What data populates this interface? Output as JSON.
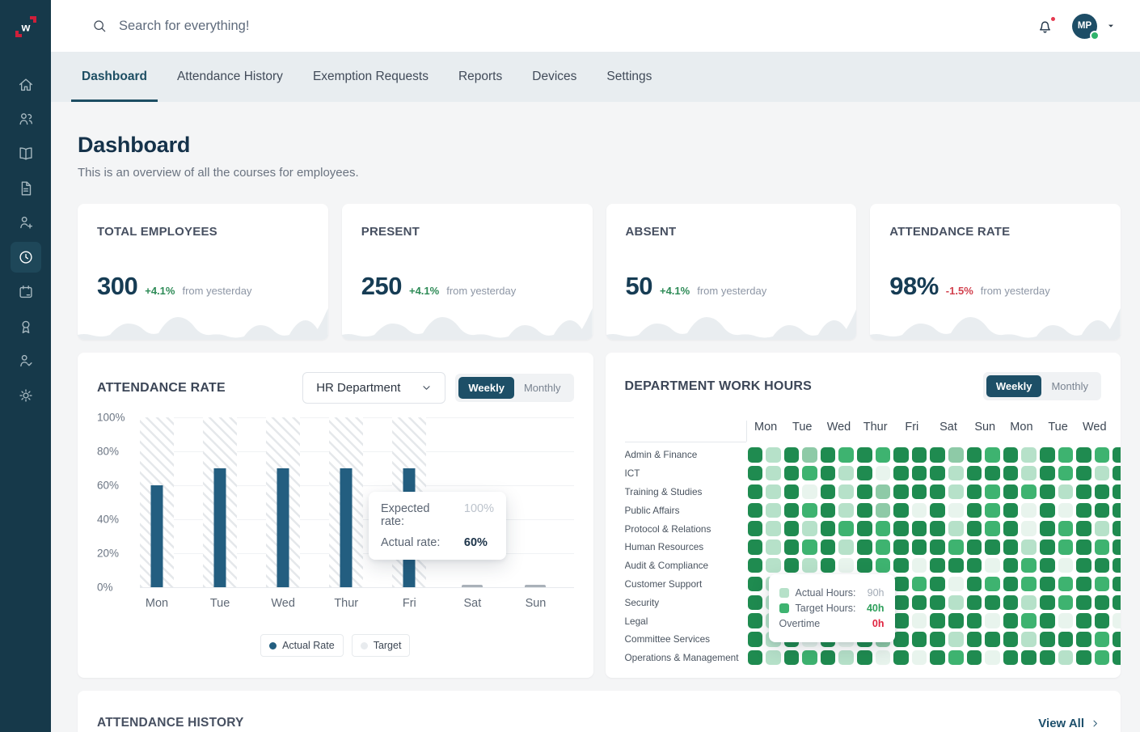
{
  "header": {
    "search_placeholder": "Search for everything!",
    "avatar_initials": "MP"
  },
  "sidebar": {
    "items": [
      {
        "icon": "home-icon"
      },
      {
        "icon": "users-icon"
      },
      {
        "icon": "book-icon"
      },
      {
        "icon": "file-icon"
      },
      {
        "icon": "user-plus-icon"
      },
      {
        "icon": "clock-icon",
        "active": true
      },
      {
        "icon": "calendar-icon"
      },
      {
        "icon": "award-icon"
      },
      {
        "icon": "user-check-icon"
      },
      {
        "icon": "gear-icon"
      }
    ]
  },
  "tabs": {
    "items": [
      {
        "label": "Dashboard",
        "active": true
      },
      {
        "label": "Attendance History"
      },
      {
        "label": "Exemption Requests"
      },
      {
        "label": "Reports"
      },
      {
        "label": "Devices"
      },
      {
        "label": "Settings"
      }
    ]
  },
  "page": {
    "title": "Dashboard",
    "subtitle": "This is an overview of all the courses for employees."
  },
  "stats": {
    "cards": [
      {
        "title": "TOTAL EMPLOYEES",
        "value": "300",
        "delta": "+4.1%",
        "direction": "up",
        "caption": "from yesterday"
      },
      {
        "title": "PRESENT",
        "value": "250",
        "delta": "+4.1%",
        "direction": "up",
        "caption": "from yesterday"
      },
      {
        "title": "ABSENT",
        "value": "50",
        "delta": "+4.1%",
        "direction": "up",
        "caption": "from yesterday"
      },
      {
        "title": "ATTENDANCE RATE",
        "value": "98%",
        "delta": "-1.5%",
        "direction": "down",
        "caption": "from yesterday"
      }
    ]
  },
  "attendance_chart": {
    "title": "ATTENDANCE RATE",
    "department_select": {
      "value": "HR Department"
    },
    "toggle": {
      "options": [
        "Weekly",
        "Monthly"
      ],
      "active": "Weekly"
    },
    "chart_data": {
      "type": "bar",
      "categories": [
        "Mon",
        "Tue",
        "Wed",
        "Thur",
        "Fri",
        "Sat",
        "Sun"
      ],
      "series": [
        {
          "name": "Target",
          "values": [
            100,
            100,
            100,
            100,
            100,
            0,
            0
          ]
        },
        {
          "name": "Actual Rate",
          "values": [
            60,
            70,
            70,
            70,
            70,
            2,
            2
          ]
        }
      ],
      "y_ticks": [
        "100%",
        "80%",
        "60%",
        "40%",
        "20%",
        "0%"
      ],
      "ylim": [
        0,
        100
      ],
      "legend": [
        "Actual Rate",
        "Target"
      ]
    },
    "tooltip": {
      "expected_label": "Expected rate:",
      "expected_value": "100%",
      "actual_label": "Actual rate:",
      "actual_value": "60%"
    },
    "colors": {
      "actual": "#235e80",
      "target_dot": "#e8ebee"
    }
  },
  "heatmap": {
    "title": "DEPARTMENT WORK HOURS",
    "toggle": {
      "options": [
        "Weekly",
        "Monthly"
      ],
      "active": "Weekly"
    },
    "days": [
      "Mon",
      "Tue",
      "Wed",
      "Thur",
      "Fri",
      "Sat",
      "Sun",
      "Mon",
      "Tue",
      "Wed"
    ],
    "level_colors": {
      "0": "#e8f4ed",
      "1": "#b6e1c9",
      "2": "#3eb370",
      "3": "#1f8b50",
      "4": "#8ecaa7"
    },
    "rows": [
      {
        "label": "Admin & Finance",
        "cells": [
          3,
          1,
          3,
          4,
          3,
          2,
          3,
          2,
          3,
          3,
          3,
          4,
          3,
          2,
          3,
          1,
          3,
          2,
          3,
          2,
          3
        ]
      },
      {
        "label": "ICT",
        "cells": [
          3,
          1,
          3,
          2,
          3,
          1,
          3,
          0,
          3,
          3,
          3,
          1,
          3,
          3,
          3,
          1,
          3,
          2,
          3,
          1,
          3
        ]
      },
      {
        "label": "Training & Studies",
        "cells": [
          3,
          1,
          3,
          0,
          3,
          1,
          3,
          4,
          3,
          3,
          3,
          1,
          3,
          2,
          3,
          2,
          3,
          1,
          3,
          3,
          3
        ]
      },
      {
        "label": "Public Affairs",
        "cells": [
          3,
          1,
          3,
          2,
          3,
          1,
          3,
          4,
          3,
          0,
          3,
          0,
          3,
          2,
          3,
          0,
          3,
          0,
          3,
          3,
          3
        ]
      },
      {
        "label": "Protocol & Relations",
        "cells": [
          3,
          1,
          3,
          1,
          3,
          2,
          3,
          2,
          3,
          3,
          3,
          1,
          3,
          2,
          3,
          0,
          3,
          2,
          3,
          1,
          3
        ]
      },
      {
        "label": "Human Resources",
        "cells": [
          3,
          1,
          3,
          2,
          3,
          1,
          3,
          2,
          3,
          3,
          3,
          2,
          3,
          3,
          3,
          1,
          3,
          2,
          3,
          2,
          3
        ]
      },
      {
        "label": "Audit & Compliance",
        "cells": [
          3,
          1,
          3,
          1,
          3,
          0,
          3,
          2,
          3,
          0,
          3,
          3,
          3,
          0,
          3,
          2,
          3,
          0,
          3,
          3,
          3
        ]
      },
      {
        "label": "Customer Support",
        "cells": [
          3,
          1,
          3,
          2,
          3,
          0,
          3,
          0,
          3,
          2,
          3,
          0,
          3,
          2,
          3,
          2,
          3,
          2,
          3,
          2,
          3
        ]
      },
      {
        "label": "Security",
        "cells": [
          3,
          1,
          3,
          0,
          3,
          1,
          3,
          4,
          3,
          3,
          3,
          1,
          3,
          3,
          3,
          1,
          3,
          2,
          3,
          3,
          3
        ]
      },
      {
        "label": "Legal",
        "cells": [
          3,
          1,
          3,
          2,
          3,
          1,
          3,
          4,
          3,
          0,
          3,
          3,
          3,
          0,
          3,
          2,
          3,
          0,
          3,
          3,
          0
        ]
      },
      {
        "label": "Committee Services",
        "cells": [
          3,
          1,
          3,
          0,
          3,
          0,
          3,
          4,
          3,
          3,
          3,
          1,
          3,
          3,
          3,
          1,
          3,
          3,
          3,
          2,
          3
        ]
      },
      {
        "label": "Operations & Management",
        "cells": [
          3,
          1,
          3,
          2,
          3,
          1,
          3,
          0,
          3,
          0,
          3,
          2,
          3,
          0,
          3,
          3,
          3,
          1,
          3,
          2,
          3
        ]
      }
    ],
    "tooltip": {
      "actual_label": "Actual Hours:",
      "actual_value": "90h",
      "target_label": "Target Hours:",
      "target_value": "40h",
      "overtime_label": "Overtime",
      "overtime_value": "0h"
    }
  },
  "history": {
    "title": "ATTENDANCE HISTORY",
    "view_all": "View All"
  }
}
